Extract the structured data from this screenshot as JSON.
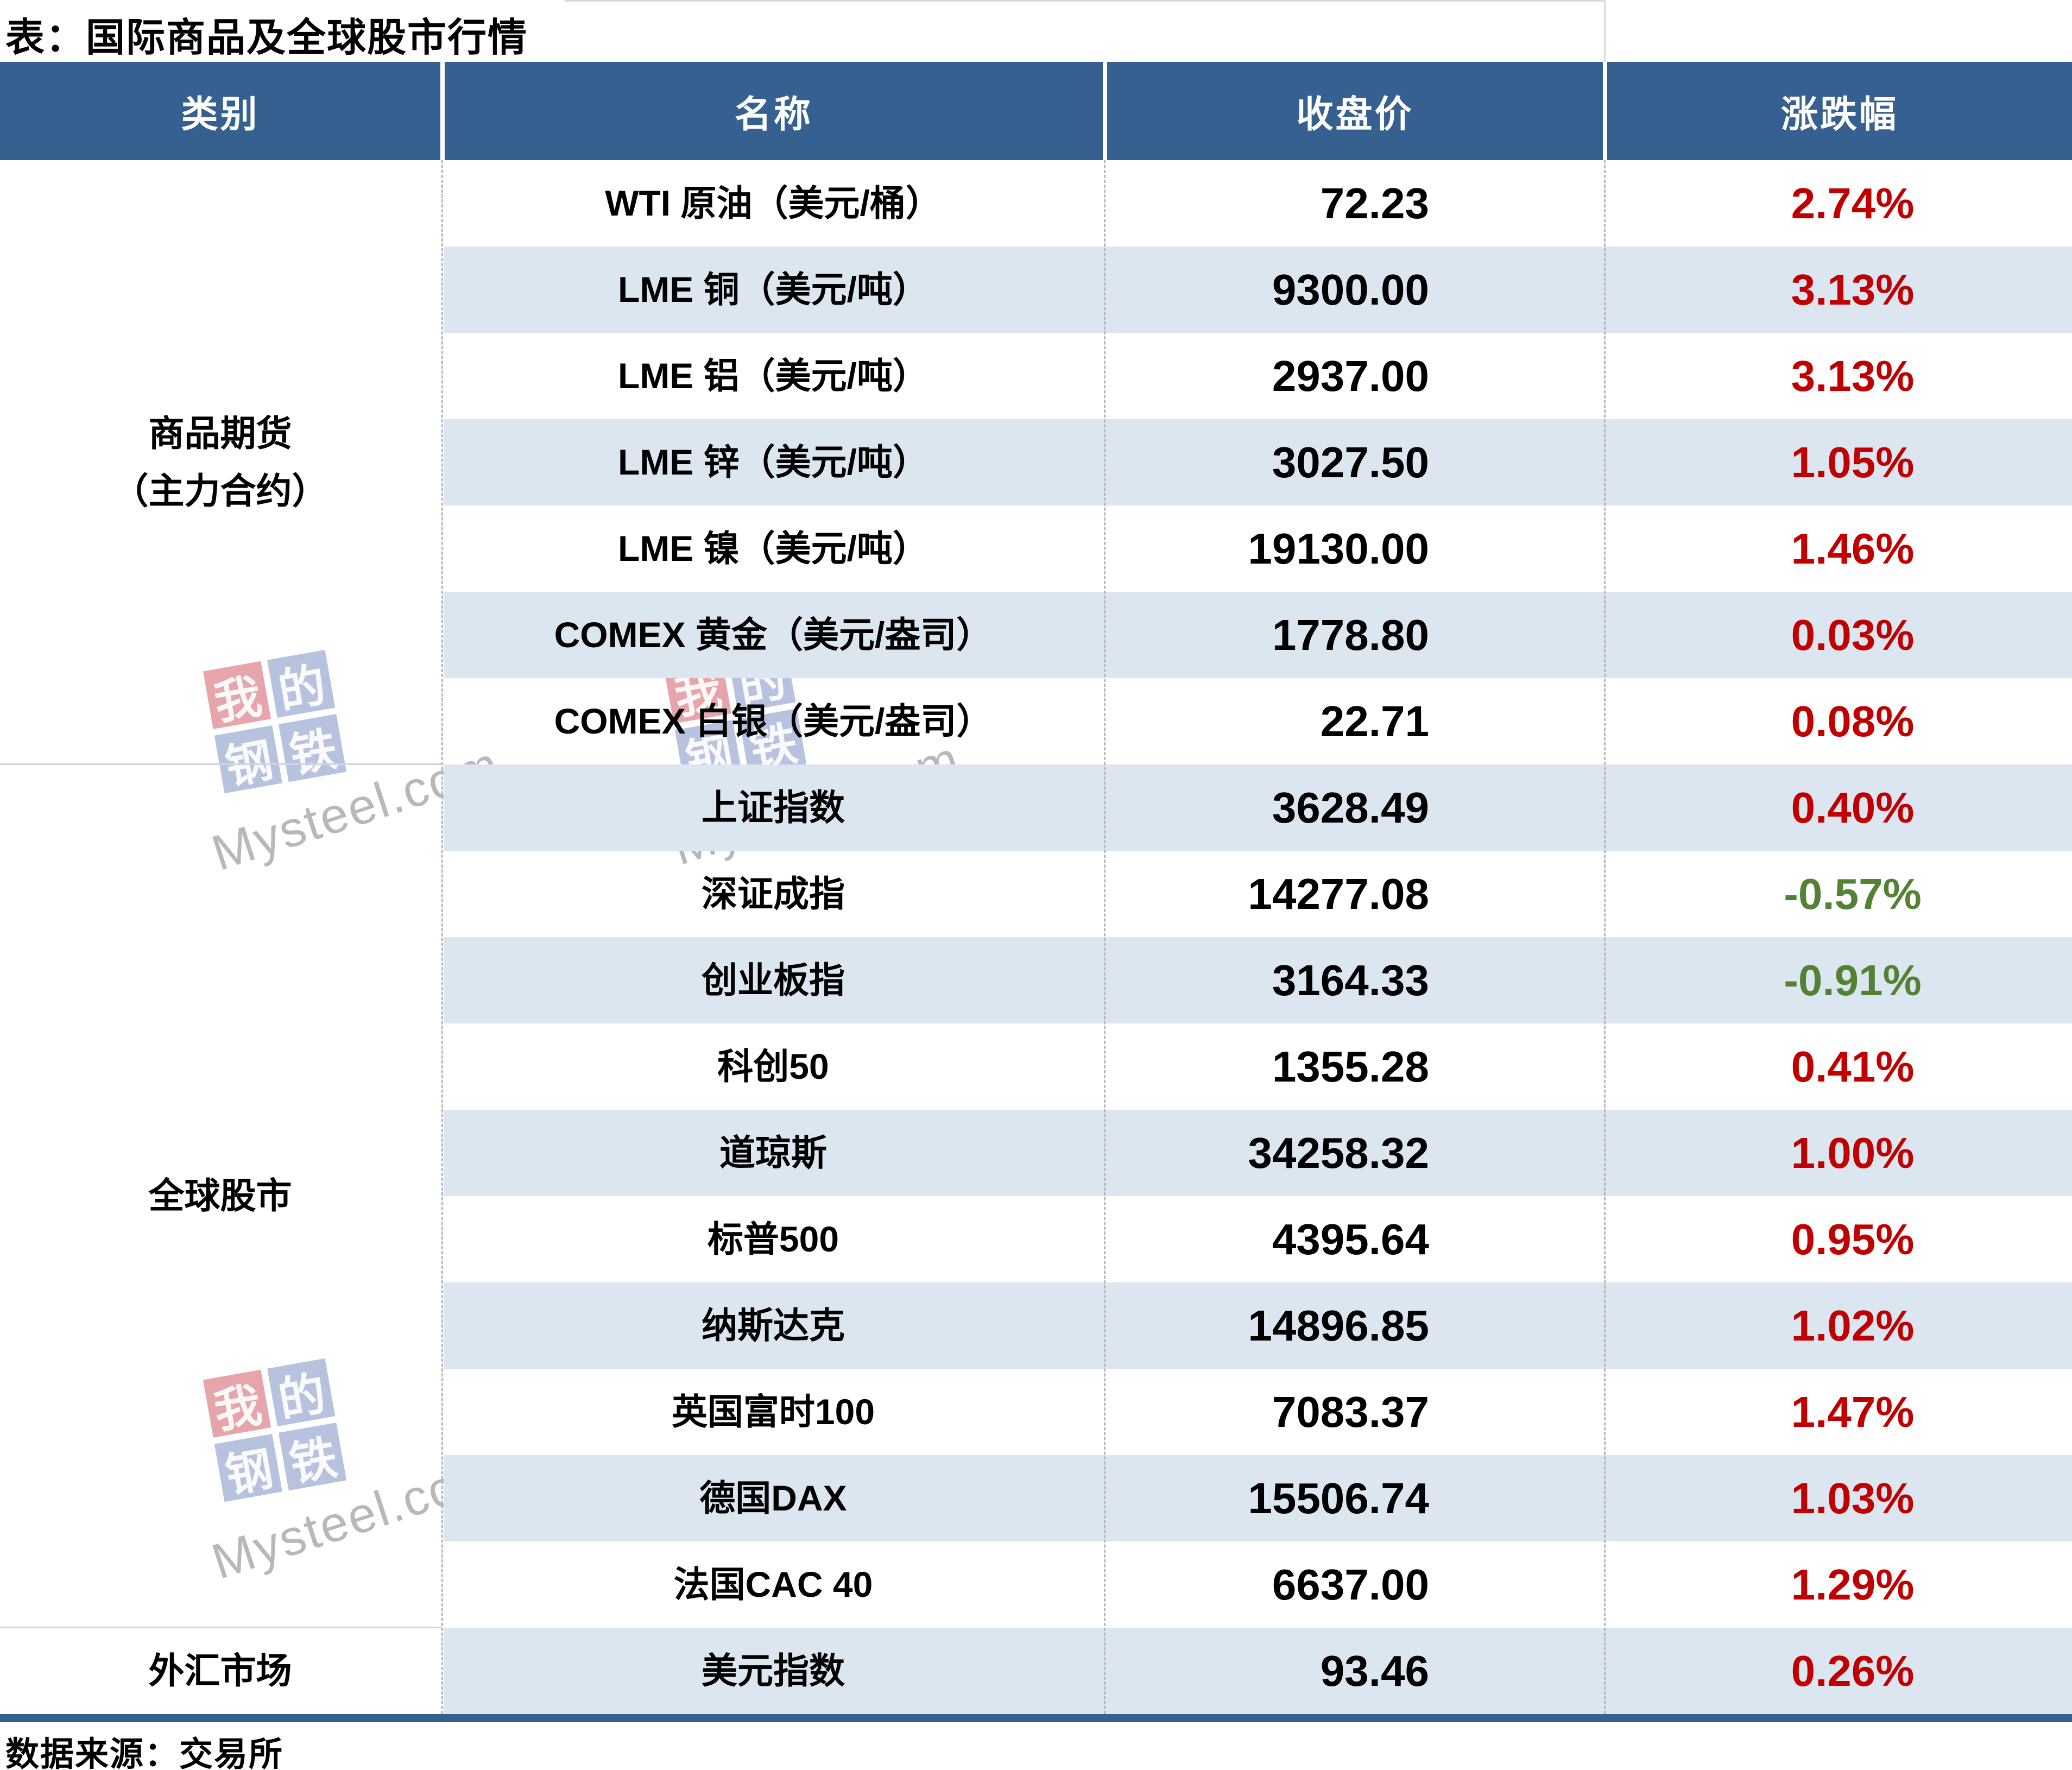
{
  "title": "表：国际商品及全球股市行情",
  "footer": {
    "source": "数据来源：交易所"
  },
  "watermark": {
    "chars": [
      "我",
      "的",
      "钢",
      "铁"
    ],
    "brand": "Mysteel.com"
  },
  "colors": {
    "header_bg": "#36608F",
    "header_text": "#FFFFFF",
    "alt_row_bg": "#DCE6F1",
    "up": "#C00000",
    "down": "#548235",
    "bottom_bar": "#36608F"
  },
  "chart_data": {
    "type": "table",
    "title": "表：国际商品及全球股市行情",
    "source": "数据来源：交易所",
    "columns": [
      "类别",
      "名称",
      "收盘价",
      "涨跌幅"
    ],
    "layout": {
      "striped": true,
      "grid": "dashed-column-separators",
      "up_color": "#C00000",
      "down_color": "#548235"
    },
    "groups": [
      {
        "category": "商品期货（主力合约）",
        "lines": [
          "商品期货",
          "（主力合约）"
        ],
        "row_span": 7
      },
      {
        "category": "全球股市",
        "lines": [
          "全球股市"
        ],
        "row_span": 10
      },
      {
        "category": "外汇市场",
        "lines": [
          "外汇市场"
        ],
        "row_span": 1
      }
    ],
    "rows": [
      {
        "name": "WTI 原油（美元/桶）",
        "close": "72.23",
        "change_pct": "2.74%",
        "direction": "up"
      },
      {
        "name": "LME 铜（美元/吨）",
        "close": "9300.00",
        "change_pct": "3.13%",
        "direction": "up"
      },
      {
        "name": "LME 铝（美元/吨）",
        "close": "2937.00",
        "change_pct": "3.13%",
        "direction": "up"
      },
      {
        "name": "LME 锌（美元/吨）",
        "close": "3027.50",
        "change_pct": "1.05%",
        "direction": "up"
      },
      {
        "name": "LME 镍（美元/吨）",
        "close": "19130.00",
        "change_pct": "1.46%",
        "direction": "up"
      },
      {
        "name": "COMEX 黄金（美元/盎司）",
        "close": "1778.80",
        "change_pct": "0.03%",
        "direction": "up"
      },
      {
        "name": "COMEX 白银（美元/盎司）",
        "close": "22.71",
        "change_pct": "0.08%",
        "direction": "up"
      },
      {
        "name": "上证指数",
        "close": "3628.49",
        "change_pct": "0.40%",
        "direction": "up"
      },
      {
        "name": "深证成指",
        "close": "14277.08",
        "change_pct": "-0.57%",
        "direction": "down"
      },
      {
        "name": "创业板指",
        "close": "3164.33",
        "change_pct": "-0.91%",
        "direction": "down"
      },
      {
        "name": "科创50",
        "close": "1355.28",
        "change_pct": "0.41%",
        "direction": "up"
      },
      {
        "name": "道琼斯",
        "close": "34258.32",
        "change_pct": "1.00%",
        "direction": "up"
      },
      {
        "name": "标普500",
        "close": "4395.64",
        "change_pct": "0.95%",
        "direction": "up"
      },
      {
        "name": "纳斯达克",
        "close": "14896.85",
        "change_pct": "1.02%",
        "direction": "up"
      },
      {
        "name": "英国富时100",
        "close": "7083.37",
        "change_pct": "1.47%",
        "direction": "up"
      },
      {
        "name": "德国DAX",
        "close": "15506.74",
        "change_pct": "1.03%",
        "direction": "up"
      },
      {
        "name": "法国CAC 40",
        "close": "6637.00",
        "change_pct": "1.29%",
        "direction": "up"
      },
      {
        "name": "美元指数",
        "close": "93.46",
        "change_pct": "0.26%",
        "direction": "up"
      }
    ]
  }
}
